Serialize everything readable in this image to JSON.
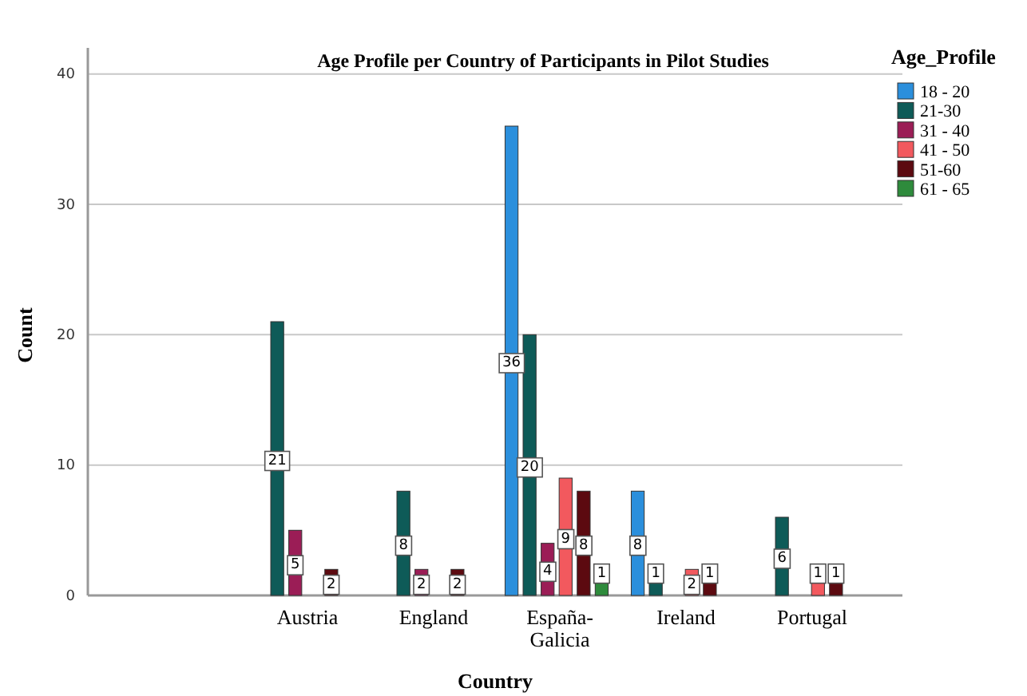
{
  "chart_data": {
    "type": "bar",
    "title": "Age Profile per Country of Participants in Pilot Studies",
    "xlabel": "Country",
    "ylabel": "Count",
    "legend_title": "Age_Profile",
    "categories": [
      null,
      "Austria",
      "England",
      "España-Galicia",
      "Ireland",
      "Portugal"
    ],
    "series": [
      {
        "name": "18 - 20",
        "color": "#2b8fdc",
        "values": [
          null,
          null,
          null,
          36,
          8,
          null
        ]
      },
      {
        "name": "21-30",
        "color": "#0e5b58",
        "values": [
          null,
          21,
          8,
          20,
          1,
          6
        ]
      },
      {
        "name": "31 - 40",
        "color": "#9b1d56",
        "values": [
          null,
          5,
          2,
          4,
          null,
          null
        ]
      },
      {
        "name": "41 - 50",
        "color": "#f2595e",
        "values": [
          null,
          null,
          null,
          9,
          2,
          1
        ]
      },
      {
        "name": "51-60",
        "color": "#5c0a10",
        "values": [
          null,
          2,
          2,
          8,
          1,
          1
        ]
      },
      {
        "name": "61 - 65",
        "color": "#2e8b3c",
        "values": [
          null,
          null,
          null,
          1,
          null,
          null
        ]
      }
    ],
    "ylim": [
      0,
      42
    ],
    "yticks": [
      0,
      10,
      20,
      30,
      40
    ],
    "grid": "y",
    "legend": "top right",
    "data_labels": true
  }
}
